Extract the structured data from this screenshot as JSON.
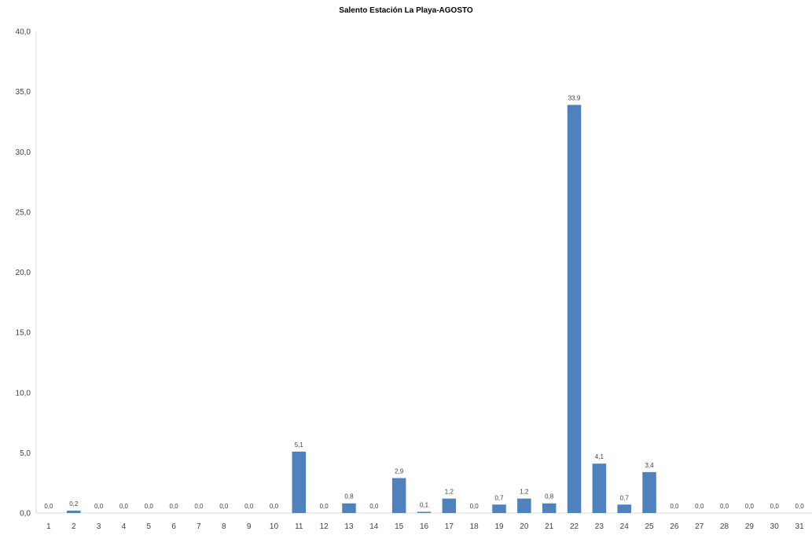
{
  "chart_data": {
    "type": "bar",
    "title": "Salento Estación La Playa-AGOSTO",
    "xlabel": "",
    "ylabel": "",
    "ylim": [
      0,
      40
    ],
    "yticks": [
      "0,0",
      "5,0",
      "10,0",
      "15,0",
      "20,0",
      "25,0",
      "30,0",
      "35,0",
      "40,0"
    ],
    "categories": [
      "1",
      "2",
      "3",
      "4",
      "5",
      "6",
      "7",
      "8",
      "9",
      "10",
      "11",
      "12",
      "13",
      "14",
      "15",
      "16",
      "17",
      "18",
      "19",
      "20",
      "21",
      "22",
      "23",
      "24",
      "25",
      "26",
      "27",
      "28",
      "29",
      "30",
      "31"
    ],
    "values": [
      0.0,
      0.2,
      0.0,
      0.0,
      0.0,
      0.0,
      0.0,
      0.0,
      0.0,
      0.0,
      5.1,
      0.0,
      0.8,
      0.0,
      2.9,
      0.1,
      1.2,
      0.0,
      0.7,
      1.2,
      0.8,
      33.9,
      4.1,
      0.7,
      3.4,
      0.0,
      0.0,
      0.0,
      0.0,
      0.0,
      0.0
    ],
    "data_labels": [
      "0,0",
      "0,2",
      "0,0",
      "0,0",
      "0,0",
      "0,0",
      "0,0",
      "0,0",
      "0,0",
      "0,0",
      "5,1",
      "0,0",
      "0,8",
      "0,0",
      "2,9",
      "0,1",
      "1,2",
      "0,0",
      "0,7",
      "1,2",
      "0,8",
      "33,9",
      "4,1",
      "0,7",
      "3,4",
      "0,0",
      "0,0",
      "0,0",
      "0,0",
      "0,0",
      "0,0"
    ],
    "bar_color": "#4f81bd",
    "axis_color": "#d9d9d9",
    "grid": false,
    "legend": "none"
  }
}
